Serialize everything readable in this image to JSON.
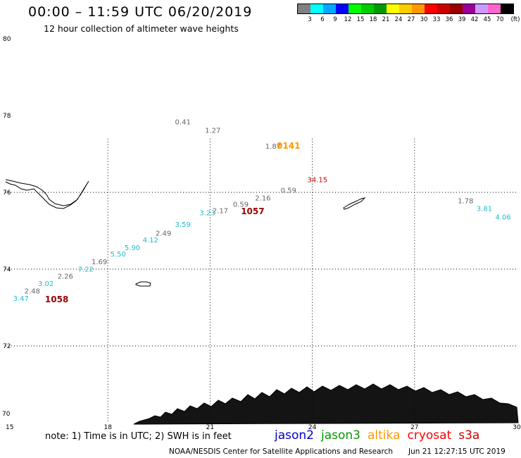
{
  "header": {
    "title": "00:00 – 11:59 UTC 06/20/2019",
    "subtitle": "12 hour collection of altimeter wave heights"
  },
  "color_legend": {
    "unit": "(ft)",
    "items": [
      {
        "label": "3",
        "color": "#808080"
      },
      {
        "label": "6",
        "color": "#00ffff"
      },
      {
        "label": "9",
        "color": "#00a8ff"
      },
      {
        "label": "12",
        "color": "#0000ff"
      },
      {
        "label": "15",
        "color": "#00ff00"
      },
      {
        "label": "18",
        "color": "#00cc00"
      },
      {
        "label": "21",
        "color": "#009900"
      },
      {
        "label": "24",
        "color": "#ffff00"
      },
      {
        "label": "27",
        "color": "#ffcc00"
      },
      {
        "label": "30",
        "color": "#ff9900"
      },
      {
        "label": "33",
        "color": "#ff0000"
      },
      {
        "label": "36",
        "color": "#cc0000"
      },
      {
        "label": "39",
        "color": "#990000"
      },
      {
        "label": "42",
        "color": "#990099"
      },
      {
        "label": "45",
        "color": "#cc99ff"
      },
      {
        "label": "70",
        "color": "#ff66cc"
      },
      {
        "label": "",
        "color": "#000000"
      }
    ]
  },
  "map": {
    "lon_ticks": [
      "15",
      "18",
      "21",
      "24",
      "27",
      "30"
    ],
    "lat_ticks": [
      "80",
      "78",
      "76",
      "74",
      "72",
      "70"
    ],
    "observations": [
      {
        "value": "0.41",
        "lon": 20.2,
        "lat": 77.77,
        "color": "#666666"
      },
      {
        "value": "1.27",
        "lon": 21.08,
        "lat": 77.55,
        "color": "#666666"
      },
      {
        "value": "1.87",
        "lon": 22.85,
        "lat": 77.14,
        "color": "#666666"
      },
      {
        "value": "34.15",
        "lon": 24.15,
        "lat": 76.27,
        "color": "#cc0000"
      },
      {
        "value": "0.59",
        "lon": 23.3,
        "lat": 75.99,
        "color": "#666666"
      },
      {
        "value": "2.16",
        "lon": 22.55,
        "lat": 75.79,
        "color": "#666666"
      },
      {
        "value": "0.59",
        "lon": 21.9,
        "lat": 75.62,
        "color": "#666666"
      },
      {
        "value": "2.17",
        "lon": 21.3,
        "lat": 75.46,
        "color": "#666666"
      },
      {
        "value": "3.23",
        "lon": 20.92,
        "lat": 75.4,
        "color": "#22bbcc"
      },
      {
        "value": "3.59",
        "lon": 20.2,
        "lat": 75.1,
        "color": "#22bbcc"
      },
      {
        "value": "2.49",
        "lon": 19.63,
        "lat": 74.87,
        "color": "#666666"
      },
      {
        "value": "4.12",
        "lon": 19.25,
        "lat": 74.7,
        "color": "#22bbcc"
      },
      {
        "value": "5.90",
        "lon": 18.72,
        "lat": 74.5,
        "color": "#22bbcc"
      },
      {
        "value": "5.50",
        "lon": 18.3,
        "lat": 74.33,
        "color": "#22bbcc"
      },
      {
        "value": "1.69",
        "lon": 17.75,
        "lat": 74.13,
        "color": "#666666"
      },
      {
        "value": "7.22",
        "lon": 17.35,
        "lat": 73.94,
        "color": "#22bbcc"
      },
      {
        "value": "2.26",
        "lon": 16.75,
        "lat": 73.75,
        "color": "#666666"
      },
      {
        "value": "3.02",
        "lon": 16.18,
        "lat": 73.56,
        "color": "#22bbcc"
      },
      {
        "value": "2.48",
        "lon": 15.78,
        "lat": 73.37,
        "color": "#666666"
      },
      {
        "value": "3.47",
        "lon": 15.45,
        "lat": 73.17,
        "color": "#22bbcc"
      },
      {
        "value": "1.78",
        "lon": 28.5,
        "lat": 75.72,
        "color": "#666666"
      },
      {
        "value": "3.81",
        "lon": 29.05,
        "lat": 75.51,
        "color": "#22bbcc"
      },
      {
        "value": "4.06",
        "lon": 29.6,
        "lat": 75.29,
        "color": "#22bbcc"
      }
    ],
    "pass_times": [
      {
        "value": "0141",
        "lon": 23.3,
        "lat": 77.14,
        "color": "#ff9900"
      },
      {
        "value": "1057",
        "lon": 22.25,
        "lat": 75.43,
        "color": "#990000"
      },
      {
        "value": "1058",
        "lon": 16.5,
        "lat": 73.14,
        "color": "#990000"
      }
    ]
  },
  "note": "note: 1) Time is in UTC; 2) SWH is in feet",
  "satellites": [
    {
      "name": "jason2",
      "color": "#0000cc"
    },
    {
      "name": "jason3",
      "color": "#009900"
    },
    {
      "name": "altika",
      "color": "#ff9900"
    },
    {
      "name": "cryosat",
      "color": "#ff0000"
    },
    {
      "name": "s3a",
      "color": "#cc0000"
    }
  ],
  "footer": {
    "source": "NOAA/NESDIS Center for Satellite Applications and Research",
    "generated": "Jun 21 12:27:15 UTC 2019"
  }
}
